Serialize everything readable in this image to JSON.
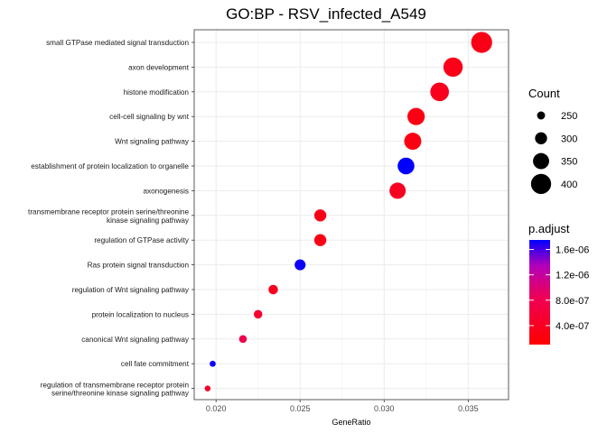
{
  "chart_data": {
    "type": "scatter",
    "title": "GO:BP - RSV_infected_A549",
    "xlabel": "GeneRatio",
    "ylabel": "",
    "xlim": [
      0.0187,
      0.0374
    ],
    "xticks": [
      "0.020",
      "0.025",
      "0.030",
      "0.035"
    ],
    "xtick_values": [
      0.02,
      0.025,
      0.03,
      0.035
    ],
    "grid": true,
    "legend_placement": "right",
    "categories": [
      [
        "small GTPase mediated signal transduction"
      ],
      [
        "axon development"
      ],
      [
        "histone modification"
      ],
      [
        "cell-cell signaling by wnt"
      ],
      [
        "Wnt signaling pathway"
      ],
      [
        "establishment of protein localization to organelle"
      ],
      [
        "axonogenesis"
      ],
      [
        "transmembrane receptor protein serine/threonine",
        "kinase signaling pathway"
      ],
      [
        "regulation of GTPase activity"
      ],
      [
        "Ras protein signal transduction"
      ],
      [
        "regulation of Wnt signaling pathway"
      ],
      [
        "protein localization to nucleus"
      ],
      [
        "canonical Wnt signaling pathway"
      ],
      [
        "cell fate commitment"
      ],
      [
        "regulation of transmembrane receptor protein",
        "serine/threonine kinase signaling pathway"
      ]
    ],
    "points": [
      {
        "gene_ratio": 0.0358,
        "count": 410,
        "p_adjust": 3e-07
      },
      {
        "gene_ratio": 0.0341,
        "count": 390,
        "p_adjust": 3.2e-07
      },
      {
        "gene_ratio": 0.0333,
        "count": 381,
        "p_adjust": 3.6e-07
      },
      {
        "gene_ratio": 0.0319,
        "count": 365,
        "p_adjust": 2.6e-07
      },
      {
        "gene_ratio": 0.0317,
        "count": 362,
        "p_adjust": 2.6e-07
      },
      {
        "gene_ratio": 0.0313,
        "count": 358,
        "p_adjust": 1.75e-06
      },
      {
        "gene_ratio": 0.0308,
        "count": 352,
        "p_adjust": 4e-07
      },
      {
        "gene_ratio": 0.0262,
        "count": 300,
        "p_adjust": 3e-07
      },
      {
        "gene_ratio": 0.0262,
        "count": 300,
        "p_adjust": 2.8e-07
      },
      {
        "gene_ratio": 0.025,
        "count": 286,
        "p_adjust": 1.72e-06
      },
      {
        "gene_ratio": 0.0234,
        "count": 268,
        "p_adjust": 3.8e-07
      },
      {
        "gene_ratio": 0.0225,
        "count": 257,
        "p_adjust": 5.2e-07
      },
      {
        "gene_ratio": 0.0216,
        "count": 247,
        "p_adjust": 7.8e-07
      },
      {
        "gene_ratio": 0.0198,
        "count": 226,
        "p_adjust": 1.72e-06
      },
      {
        "gene_ratio": 0.0195,
        "count": 223,
        "p_adjust": 4.5e-07
      }
    ],
    "size_legend": {
      "title": "Count",
      "values": [
        250,
        300,
        350,
        400
      ],
      "labels": [
        "250",
        "300",
        "350",
        "400"
      ]
    },
    "color_legend": {
      "title": "p.adjust",
      "range": [
        1e-07,
        1.75e-06
      ],
      "tick_values": [
        1.6e-06,
        1.2e-06,
        8e-07,
        4e-07
      ],
      "tick_labels": [
        "1.6e-06",
        "1.2e-06",
        "8.0e-07",
        "4.0e-07"
      ],
      "low_color": "#ff0000",
      "high_color": "#0000ff"
    }
  }
}
